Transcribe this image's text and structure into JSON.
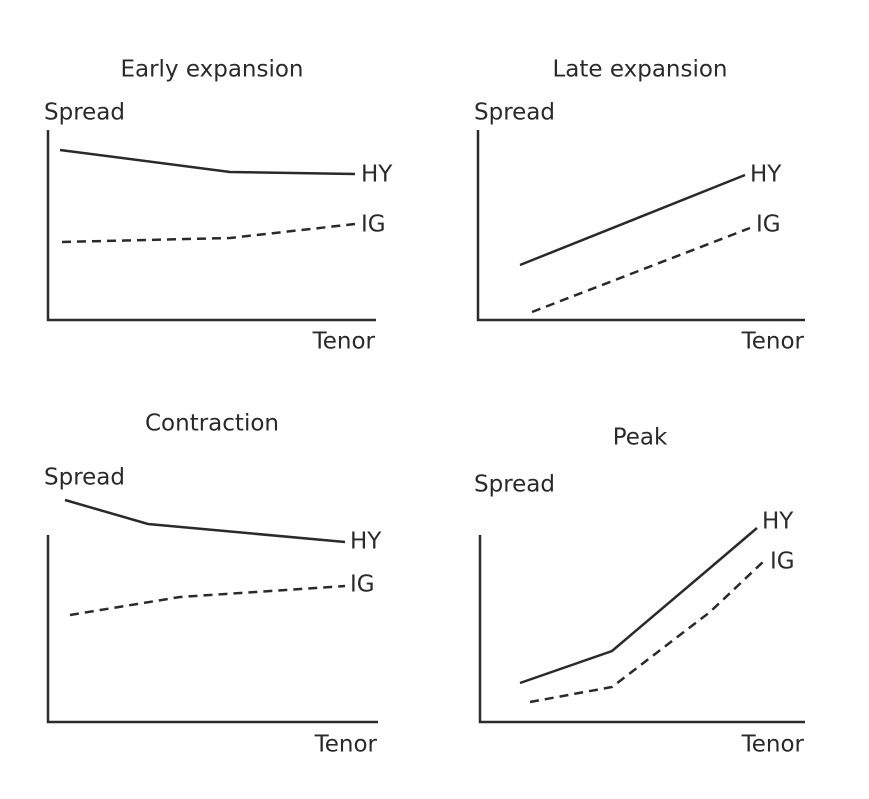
{
  "panels": [
    {
      "title": "Early expansion",
      "y_label": "Spread",
      "x_label": "Tenor",
      "series": [
        {
          "label": "HY"
        },
        {
          "label": "IG"
        }
      ]
    },
    {
      "title": "Late expansion",
      "y_label": "Spread",
      "x_label": "Tenor",
      "series": [
        {
          "label": "HY"
        },
        {
          "label": "IG"
        }
      ]
    },
    {
      "title": "Contraction",
      "y_label": "Spread",
      "x_label": "Tenor",
      "series": [
        {
          "label": "HY"
        },
        {
          "label": "IG"
        }
      ]
    },
    {
      "title": "Peak",
      "y_label": "Spread",
      "x_label": "Tenor",
      "series": [
        {
          "label": "HY"
        },
        {
          "label": "IG"
        }
      ]
    }
  ]
}
